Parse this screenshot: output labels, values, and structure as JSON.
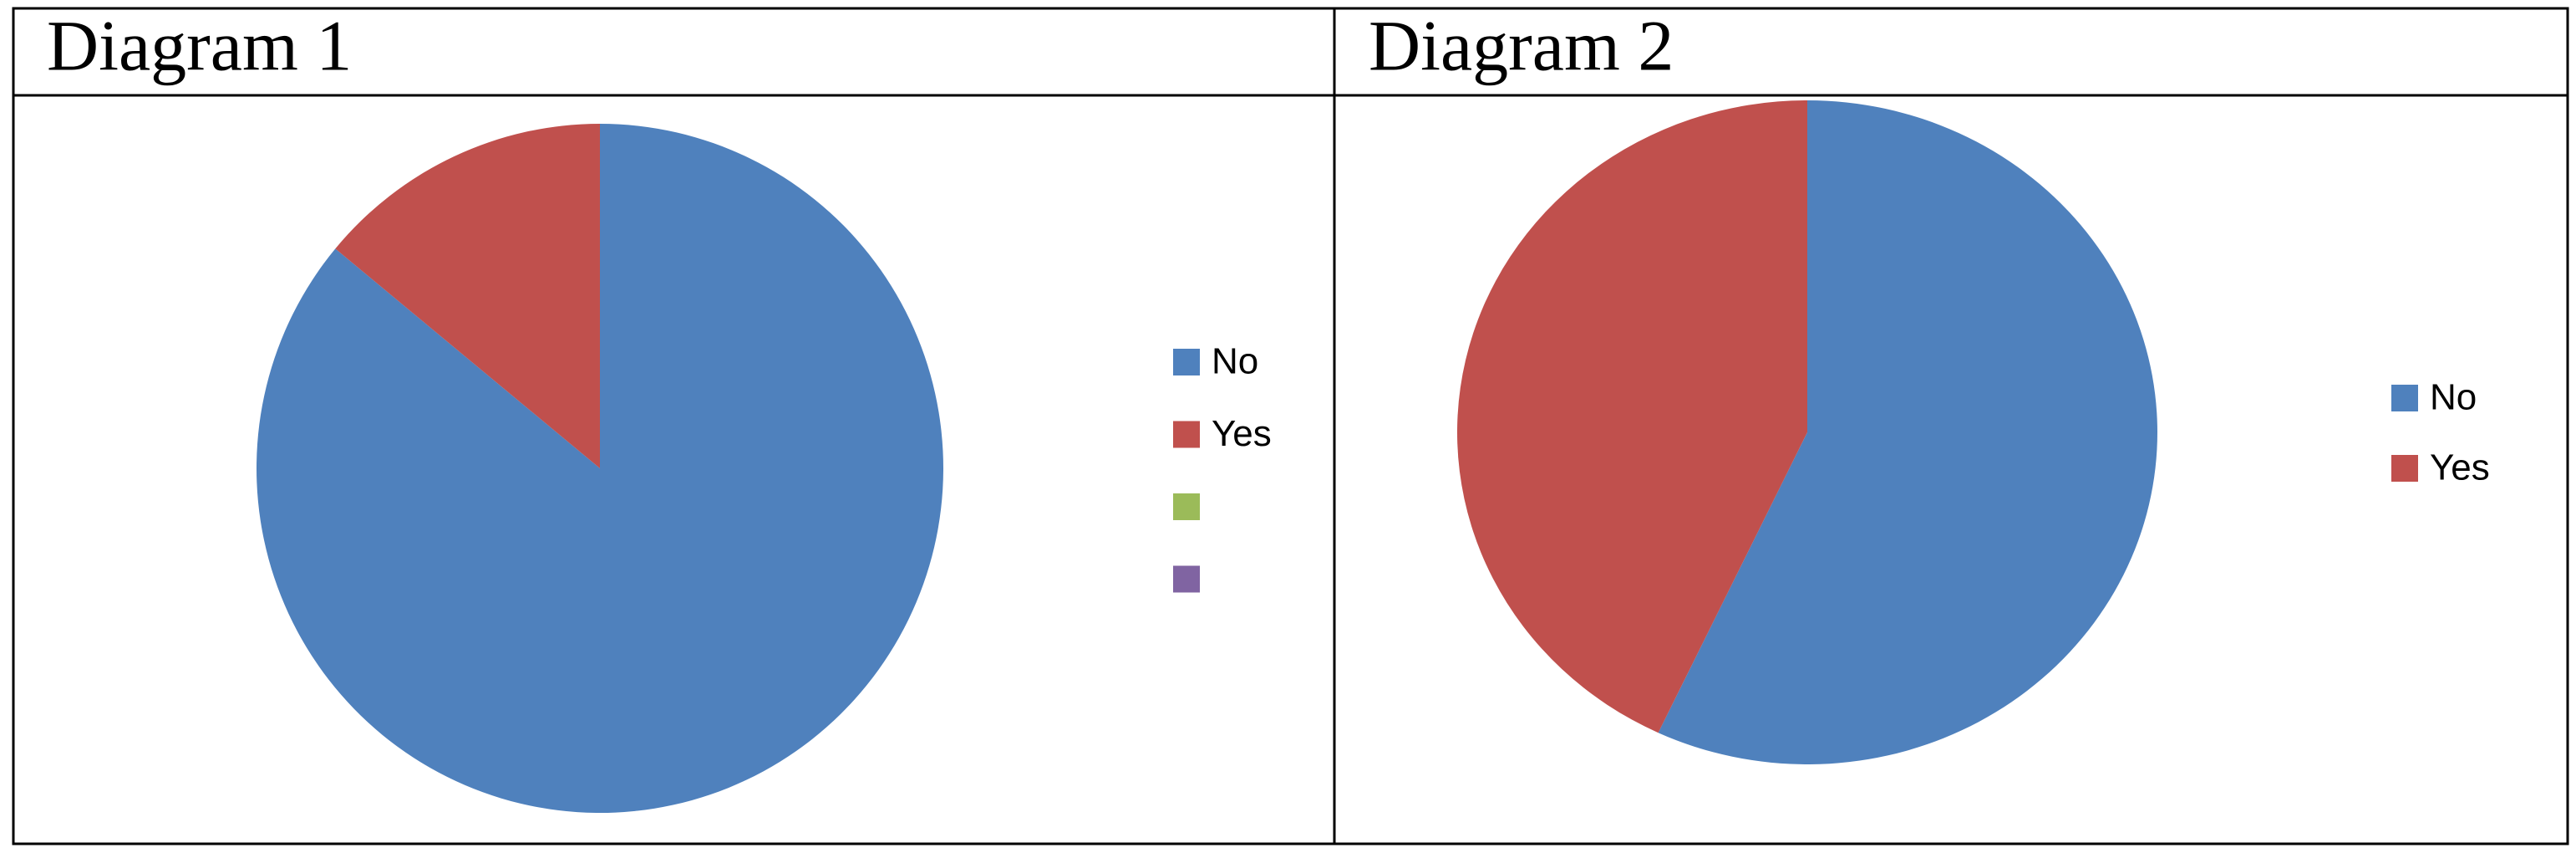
{
  "chart_data": [
    {
      "type": "pie",
      "title": "Diagram 1",
      "categories": [
        "No",
        "Yes",
        null,
        null
      ],
      "values": [
        86,
        14,
        null,
        null
      ],
      "colors": [
        "#4f81bd",
        "#c0504d",
        "#9bbb59",
        "#8064a2"
      ]
    },
    {
      "type": "pie",
      "title": "Diagram 2",
      "categories": [
        "No",
        "Yes"
      ],
      "values": [
        57,
        43
      ],
      "colors": [
        "#4f81bd",
        "#c0504d"
      ]
    }
  ]
}
